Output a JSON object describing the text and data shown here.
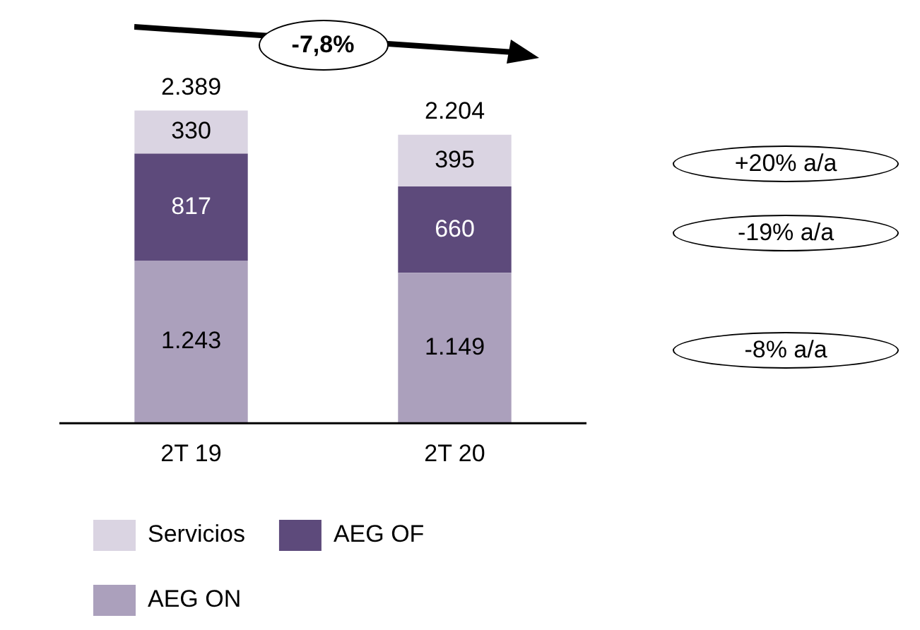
{
  "chart_data": {
    "type": "bar",
    "stacked": true,
    "categories": [
      "2T 19",
      "2T 20"
    ],
    "series": [
      {
        "name": "AEG ON",
        "color": "#aba0bc",
        "values": [
          1243,
          1149
        ],
        "value_labels": [
          "1.243",
          "1.149"
        ]
      },
      {
        "name": "AEG OF",
        "color": "#5d4a7b",
        "values": [
          817,
          660
        ],
        "value_labels": [
          "817",
          "660"
        ]
      },
      {
        "name": "Servicios",
        "color": "#dad4e2",
        "values": [
          330,
          395
        ],
        "value_labels": [
          "330",
          "395"
        ]
      }
    ],
    "totals": [
      "2.389",
      "2.204"
    ],
    "annotations": [
      "-7,8%",
      "-8% a/a",
      "-19% a/a",
      "+20% a/a"
    ],
    "legend": "bottom",
    "grid": false
  }
}
